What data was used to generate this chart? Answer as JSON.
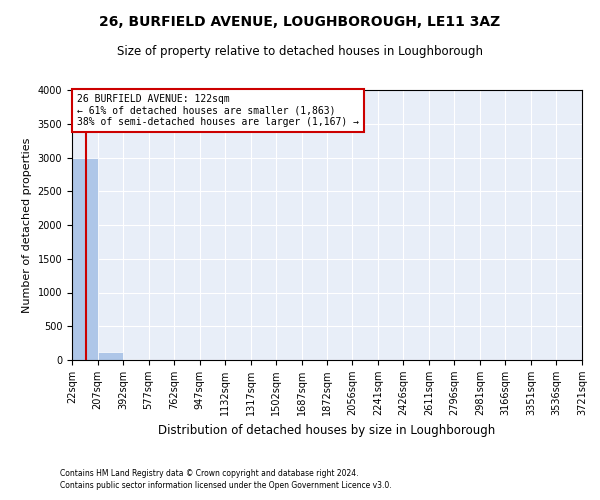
{
  "title_line1": "26, BURFIELD AVENUE, LOUGHBOROUGH, LE11 3AZ",
  "title_line2": "Size of property relative to detached houses in Loughborough",
  "xlabel": "Distribution of detached houses by size in Loughborough",
  "ylabel": "Number of detached properties",
  "footnote1": "Contains HM Land Registry data © Crown copyright and database right 2024.",
  "footnote2": "Contains public sector information licensed under the Open Government Licence v3.0.",
  "property_size": 122,
  "property_label": "26 BURFIELD AVENUE: 122sqm",
  "annotation_line2": "← 61% of detached houses are smaller (1,863)",
  "annotation_line3": "38% of semi-detached houses are larger (1,167) →",
  "bar_color": "#aec6e8",
  "vline_color": "#cc0000",
  "annotation_box_color": "#cc0000",
  "background_color": "#e8eef8",
  "ylim": [
    0,
    4000
  ],
  "yticks": [
    0,
    500,
    1000,
    1500,
    2000,
    2500,
    3000,
    3500,
    4000
  ],
  "bin_edges": [
    22,
    207,
    392,
    577,
    762,
    947,
    1132,
    1317,
    1502,
    1687,
    1872,
    2056,
    2241,
    2426,
    2611,
    2796,
    2981,
    3166,
    3351,
    3536,
    3721
  ],
  "bin_labels": [
    "22sqm",
    "207sqm",
    "392sqm",
    "577sqm",
    "762sqm",
    "947sqm",
    "1132sqm",
    "1317sqm",
    "1502sqm",
    "1687sqm",
    "1872sqm",
    "2056sqm",
    "2241sqm",
    "2426sqm",
    "2611sqm",
    "2796sqm",
    "2981sqm",
    "3166sqm",
    "3351sqm",
    "3536sqm",
    "3721sqm"
  ],
  "bar_heights": [
    2990,
    115,
    8,
    2,
    1,
    0,
    0,
    0,
    0,
    0,
    0,
    0,
    0,
    0,
    0,
    0,
    0,
    0,
    0,
    0
  ],
  "title1_fontsize": 10,
  "title2_fontsize": 8.5,
  "ylabel_fontsize": 8,
  "xlabel_fontsize": 8.5,
  "tick_fontsize": 7,
  "annotation_fontsize": 7,
  "footnote_fontsize": 5.5
}
